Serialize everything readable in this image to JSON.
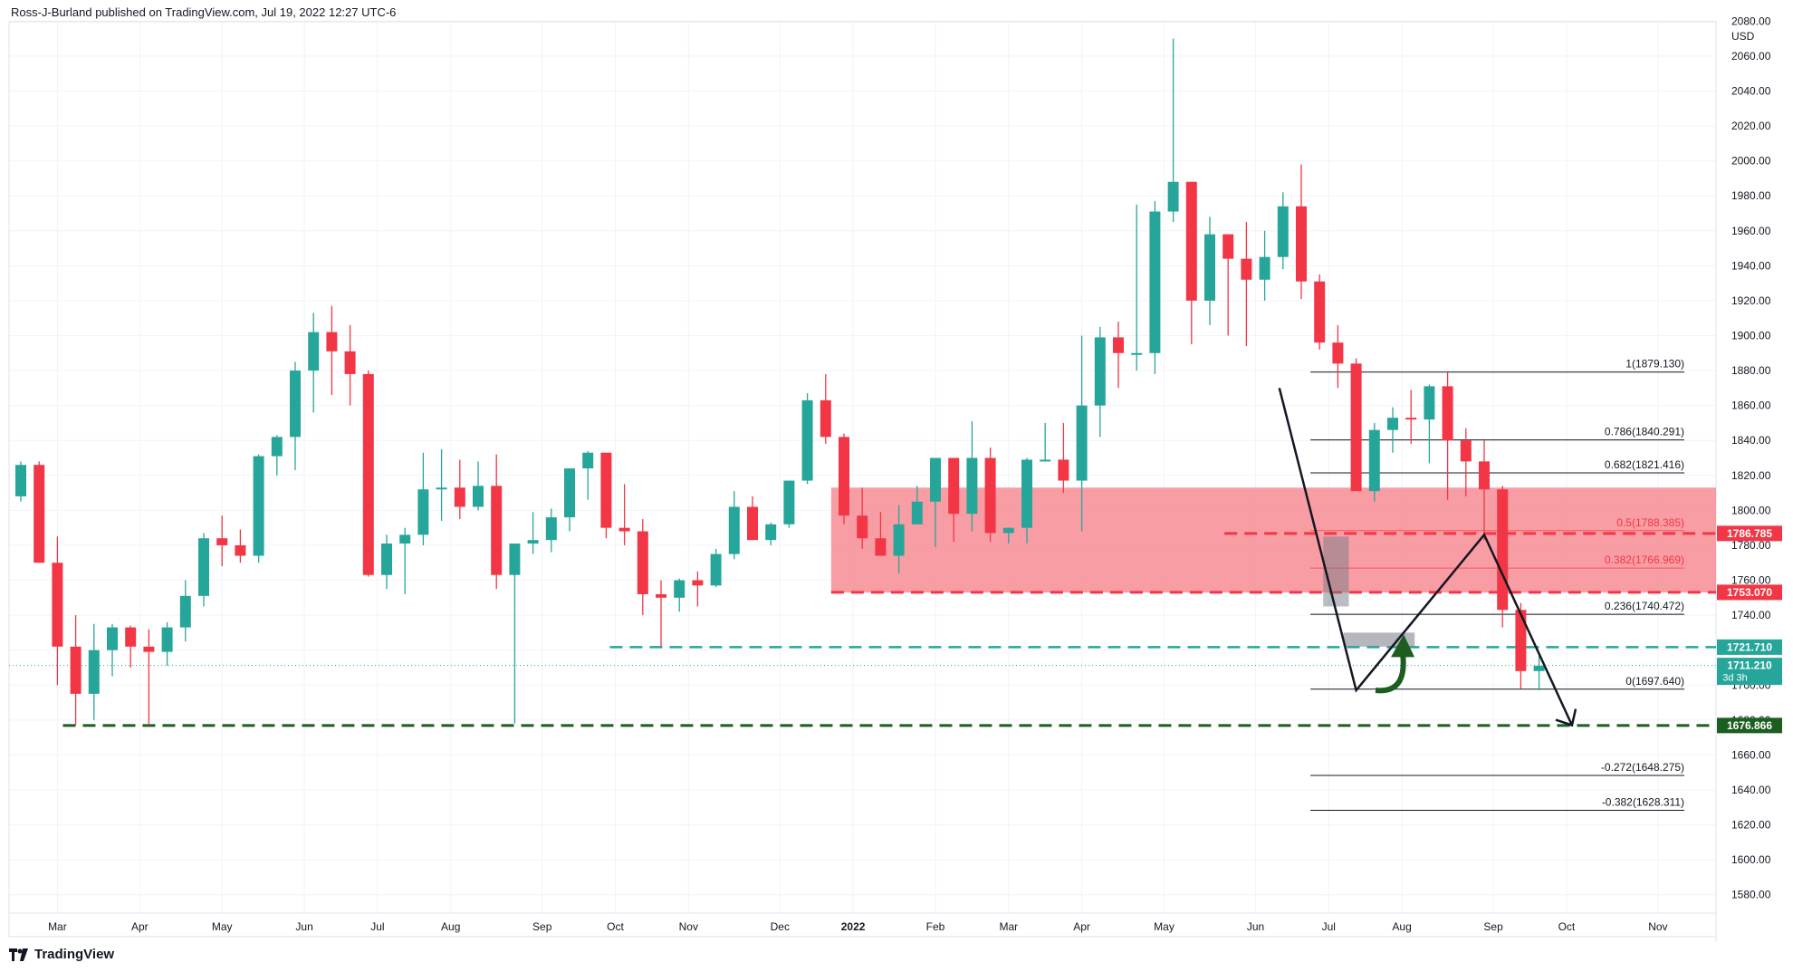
{
  "header": {
    "text": "Ross-J-Burland published on TradingView.com, Jul 19, 2022 12:27 UTC-6"
  },
  "branding": {
    "name": "TradingView"
  },
  "colors": {
    "up": "#26a69a",
    "down": "#f23645",
    "zone": "#f7858f",
    "grid": "#f0f3fa",
    "green_dash": "#26a69a",
    "dark_green": "#1b5e20",
    "red_dash": "#f23645"
  },
  "chart_data": {
    "type": "candlestick",
    "currency": "USD",
    "timeframe": "weekly",
    "ylim": [
      1570,
      2090
    ],
    "y_ticks": [
      1580,
      1600,
      1620,
      1640,
      1660,
      1680,
      1700,
      1720,
      1740,
      1760,
      1780,
      1800,
      1820,
      1840,
      1860,
      1880,
      1900,
      1920,
      1940,
      1960,
      1980,
      2000,
      2020,
      2040,
      2060,
      2080
    ],
    "x_labels": [
      {
        "label": "Mar",
        "x": 2
      },
      {
        "label": "Apr",
        "x": 6.5
      },
      {
        "label": "May",
        "x": 11
      },
      {
        "label": "Jun",
        "x": 15.5
      },
      {
        "label": "Jul",
        "x": 19.5
      },
      {
        "label": "Aug",
        "x": 23.5
      },
      {
        "label": "Sep",
        "x": 28.5
      },
      {
        "label": "Oct",
        "x": 32.5
      },
      {
        "label": "Nov",
        "x": 36.5
      },
      {
        "label": "Dec",
        "x": 41.5
      },
      {
        "label": "2022",
        "x": 45.5
      },
      {
        "label": "Feb",
        "x": 50
      },
      {
        "label": "Mar",
        "x": 54
      },
      {
        "label": "Apr",
        "x": 58
      },
      {
        "label": "May",
        "x": 62.5
      },
      {
        "label": "Jun",
        "x": 67.5
      },
      {
        "label": "Jul",
        "x": 71.5
      },
      {
        "label": "Aug",
        "x": 75.5
      },
      {
        "label": "Sep",
        "x": 80.5
      },
      {
        "label": "Oct",
        "x": 84.5
      },
      {
        "label": "Nov",
        "x": 89.5
      }
    ],
    "candles": [
      {
        "o": 1808,
        "h": 1828,
        "l": 1805,
        "c": 1826
      },
      {
        "o": 1826,
        "h": 1828,
        "l": 1770,
        "c": 1770
      },
      {
        "o": 1770,
        "h": 1785,
        "l": 1700,
        "c": 1722
      },
      {
        "o": 1722,
        "h": 1740,
        "l": 1677,
        "c": 1695
      },
      {
        "o": 1695,
        "h": 1735,
        "l": 1680,
        "c": 1720
      },
      {
        "o": 1720,
        "h": 1735,
        "l": 1705,
        "c": 1733
      },
      {
        "o": 1733,
        "h": 1734,
        "l": 1710,
        "c": 1722
      },
      {
        "o": 1722,
        "h": 1732,
        "l": 1677,
        "c": 1719
      },
      {
        "o": 1719,
        "h": 1736,
        "l": 1711,
        "c": 1733
      },
      {
        "o": 1733,
        "h": 1760,
        "l": 1725,
        "c": 1751
      },
      {
        "o": 1751,
        "h": 1787,
        "l": 1745,
        "c": 1784
      },
      {
        "o": 1784,
        "h": 1797,
        "l": 1768,
        "c": 1780
      },
      {
        "o": 1780,
        "h": 1789,
        "l": 1770,
        "c": 1774
      },
      {
        "o": 1774,
        "h": 1832,
        "l": 1770,
        "c": 1831
      },
      {
        "o": 1831,
        "h": 1843,
        "l": 1820,
        "c": 1842
      },
      {
        "o": 1842,
        "h": 1885,
        "l": 1823,
        "c": 1880
      },
      {
        "o": 1880,
        "h": 1913,
        "l": 1856,
        "c": 1902
      },
      {
        "o": 1902,
        "h": 1917,
        "l": 1866,
        "c": 1891
      },
      {
        "o": 1891,
        "h": 1906,
        "l": 1860,
        "c": 1878
      },
      {
        "o": 1878,
        "h": 1880,
        "l": 1762,
        "c": 1763
      },
      {
        "o": 1763,
        "h": 1786,
        "l": 1755,
        "c": 1781
      },
      {
        "o": 1781,
        "h": 1790,
        "l": 1752,
        "c": 1786
      },
      {
        "o": 1786,
        "h": 1833,
        "l": 1780,
        "c": 1812
      },
      {
        "o": 1812,
        "h": 1835,
        "l": 1794,
        "c": 1813
      },
      {
        "o": 1813,
        "h": 1829,
        "l": 1795,
        "c": 1802
      },
      {
        "o": 1802,
        "h": 1828,
        "l": 1800,
        "c": 1814
      },
      {
        "o": 1814,
        "h": 1832,
        "l": 1755,
        "c": 1763
      },
      {
        "o": 1763,
        "h": 1779,
        "l": 1678,
        "c": 1781
      },
      {
        "o": 1781,
        "h": 1799,
        "l": 1775,
        "c": 1783
      },
      {
        "o": 1783,
        "h": 1801,
        "l": 1776,
        "c": 1796
      },
      {
        "o": 1796,
        "h": 1822,
        "l": 1788,
        "c": 1824
      },
      {
        "o": 1824,
        "h": 1834,
        "l": 1806,
        "c": 1833
      },
      {
        "o": 1833,
        "h": 1830,
        "l": 1784,
        "c": 1790
      },
      {
        "o": 1790,
        "h": 1815,
        "l": 1780,
        "c": 1788
      },
      {
        "o": 1788,
        "h": 1795,
        "l": 1740,
        "c": 1752
      },
      {
        "o": 1752,
        "h": 1760,
        "l": 1722,
        "c": 1750
      },
      {
        "o": 1750,
        "h": 1761,
        "l": 1742,
        "c": 1760
      },
      {
        "o": 1760,
        "h": 1765,
        "l": 1745,
        "c": 1757
      },
      {
        "o": 1757,
        "h": 1778,
        "l": 1756,
        "c": 1775
      },
      {
        "o": 1775,
        "h": 1811,
        "l": 1772,
        "c": 1802
      },
      {
        "o": 1802,
        "h": 1808,
        "l": 1785,
        "c": 1783
      },
      {
        "o": 1783,
        "h": 1793,
        "l": 1780,
        "c": 1792
      },
      {
        "o": 1792,
        "h": 1815,
        "l": 1790,
        "c": 1817
      },
      {
        "o": 1817,
        "h": 1867,
        "l": 1815,
        "c": 1863
      },
      {
        "o": 1863,
        "h": 1878,
        "l": 1838,
        "c": 1842
      },
      {
        "o": 1842,
        "h": 1844,
        "l": 1792,
        "c": 1797
      },
      {
        "o": 1797,
        "h": 1813,
        "l": 1778,
        "c": 1784
      },
      {
        "o": 1784,
        "h": 1799,
        "l": 1774,
        "c": 1774
      },
      {
        "o": 1774,
        "h": 1803,
        "l": 1764,
        "c": 1792
      },
      {
        "o": 1792,
        "h": 1814,
        "l": 1792,
        "c": 1805
      },
      {
        "o": 1805,
        "h": 1830,
        "l": 1779,
        "c": 1830
      },
      {
        "o": 1830,
        "h": 1830,
        "l": 1782,
        "c": 1798
      },
      {
        "o": 1798,
        "h": 1851,
        "l": 1788,
        "c": 1830
      },
      {
        "o": 1830,
        "h": 1836,
        "l": 1782,
        "c": 1787
      },
      {
        "o": 1787,
        "h": 1790,
        "l": 1781,
        "c": 1790
      },
      {
        "o": 1790,
        "h": 1830,
        "l": 1781,
        "c": 1829
      },
      {
        "o": 1829,
        "h": 1850,
        "l": 1829,
        "c": 1829
      },
      {
        "o": 1829,
        "h": 1850,
        "l": 1810,
        "c": 1817
      },
      {
        "o": 1817,
        "h": 1900,
        "l": 1788,
        "c": 1860
      },
      {
        "o": 1860,
        "h": 1905,
        "l": 1842,
        "c": 1899
      },
      {
        "o": 1899,
        "h": 1908,
        "l": 1870,
        "c": 1890
      },
      {
        "o": 1890,
        "h": 1975,
        "l": 1880,
        "c": 1890
      },
      {
        "o": 1890,
        "h": 1977,
        "l": 1878,
        "c": 1971
      },
      {
        "o": 1971,
        "h": 2070,
        "l": 1965,
        "c": 1988
      },
      {
        "o": 1988,
        "h": 1988,
        "l": 1895,
        "c": 1920
      },
      {
        "o": 1920,
        "h": 1968,
        "l": 1906,
        "c": 1958
      },
      {
        "o": 1958,
        "h": 1957,
        "l": 1900,
        "c": 1944
      },
      {
        "o": 1944,
        "h": 1965,
        "l": 1894,
        "c": 1932
      },
      {
        "o": 1932,
        "h": 1960,
        "l": 1920,
        "c": 1945
      },
      {
        "o": 1945,
        "h": 1982,
        "l": 1938,
        "c": 1974
      },
      {
        "o": 1974,
        "h": 1998,
        "l": 1921,
        "c": 1931
      },
      {
        "o": 1931,
        "h": 1935,
        "l": 1892,
        "c": 1896
      },
      {
        "o": 1896,
        "h": 1906,
        "l": 1870,
        "c": 1884
      },
      {
        "o": 1884,
        "h": 1887,
        "l": 1812,
        "c": 1811
      },
      {
        "o": 1811,
        "h": 1850,
        "l": 1805,
        "c": 1846
      },
      {
        "o": 1846,
        "h": 1859,
        "l": 1833,
        "c": 1853
      },
      {
        "o": 1853,
        "h": 1869,
        "l": 1838,
        "c": 1852
      },
      {
        "o": 1852,
        "h": 1872,
        "l": 1827,
        "c": 1871
      },
      {
        "o": 1871,
        "h": 1879,
        "l": 1806,
        "c": 1840
      },
      {
        "o": 1840,
        "h": 1847,
        "l": 1808,
        "c": 1828
      },
      {
        "o": 1828,
        "h": 1840,
        "l": 1783,
        "c": 1812
      },
      {
        "o": 1812,
        "h": 1814,
        "l": 1733,
        "c": 1743
      },
      {
        "o": 1743,
        "h": 1747,
        "l": 1698,
        "c": 1708
      },
      {
        "o": 1708,
        "h": 1717,
        "l": 1697,
        "c": 1711
      }
    ],
    "fib_levels": [
      {
        "label": "1(1879.130)",
        "value": 1879.13
      },
      {
        "label": "0.786(1840.291)",
        "value": 1840.291
      },
      {
        "label": "0.682(1821.416)",
        "value": 1821.416
      },
      {
        "label": "0.5(1788.385)",
        "value": 1788.385
      },
      {
        "label": "0.382(1766.969)",
        "value": 1766.969
      },
      {
        "label": "0.236(1740.472)",
        "value": 1740.472
      },
      {
        "label": "0(1697.640)",
        "value": 1697.64
      },
      {
        "label": "-0.272(1648.275)",
        "value": 1648.275
      },
      {
        "label": "-0.382(1628.311)",
        "value": 1628.311
      }
    ],
    "price_labels": [
      {
        "label": "1786.785",
        "value": 1786.785,
        "color": "#f23645"
      },
      {
        "label": "1753.070",
        "value": 1753.07,
        "color": "#f23645"
      },
      {
        "label": "1721.710",
        "value": 1721.71,
        "color": "#26a69a"
      },
      {
        "label": "1711.210",
        "value": 1711.21,
        "color": "#26a69a",
        "sub": "3d 3h"
      },
      {
        "label": "1676.866",
        "value": 1676.866,
        "color": "#1b5e20"
      }
    ],
    "zone": {
      "top": 1813,
      "bottom": 1753
    },
    "levels": {
      "resistance_high": 1786.785,
      "resistance_low": 1753.07,
      "support_mid": 1721.71,
      "support_low": 1676.866,
      "current": 1711.21
    }
  }
}
